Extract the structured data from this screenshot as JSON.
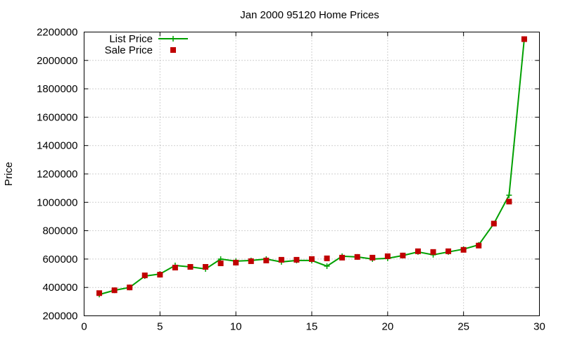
{
  "chart_data": {
    "type": "line",
    "title": "Jan 2000 95120 Home Prices",
    "xlabel": "",
    "ylabel": "Price",
    "xlim": [
      0,
      30
    ],
    "ylim": [
      200000,
      2200000
    ],
    "xticks": [
      0,
      5,
      10,
      15,
      20,
      25,
      30
    ],
    "yticks": [
      200000,
      400000,
      600000,
      800000,
      1000000,
      1200000,
      1400000,
      1600000,
      1800000,
      2000000,
      2200000
    ],
    "grid": true,
    "legend_position": "top-left",
    "x": [
      1,
      2,
      3,
      4,
      5,
      6,
      7,
      8,
      9,
      10,
      11,
      12,
      13,
      14,
      15,
      16,
      17,
      18,
      19,
      20,
      21,
      22,
      23,
      24,
      25,
      26,
      27,
      28,
      29
    ],
    "series": [
      {
        "name": "List Price",
        "style": "line-plus",
        "color": "#00a000",
        "values": [
          350000,
          380000,
          400000,
          480000,
          495000,
          555000,
          545000,
          530000,
          600000,
          585000,
          590000,
          600000,
          580000,
          590000,
          590000,
          550000,
          620000,
          615000,
          600000,
          605000,
          625000,
          650000,
          630000,
          650000,
          670000,
          700000,
          850000,
          1050000,
          2150000
        ]
      },
      {
        "name": "Sale Price",
        "style": "square-points",
        "color": "#c00000",
        "values": [
          360000,
          380000,
          400000,
          485000,
          490000,
          540000,
          545000,
          545000,
          570000,
          575000,
          585000,
          590000,
          595000,
          595000,
          600000,
          605000,
          610000,
          615000,
          610000,
          620000,
          625000,
          655000,
          650000,
          655000,
          665000,
          695000,
          850000,
          1005000,
          2150000
        ]
      }
    ]
  }
}
